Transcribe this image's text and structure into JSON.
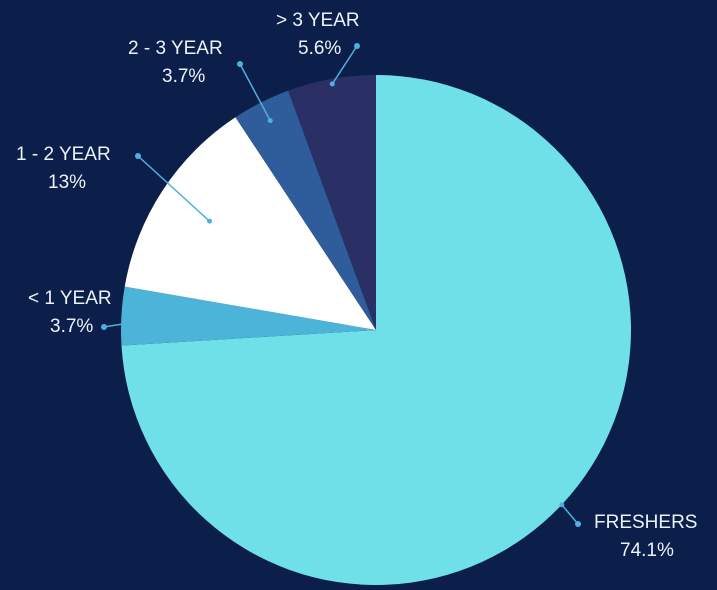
{
  "chart_data": {
    "type": "pie",
    "start_angle_deg": 0,
    "direction": "clockwise",
    "background": "#0b1f4a",
    "slices": [
      {
        "label": "FRESHERS",
        "value": 74.1,
        "value_label": "74.1%",
        "color": "#6fe0e8"
      },
      {
        "label": "< 1 YEAR",
        "value": 3.7,
        "value_label": "3.7%",
        "color": "#4bb4d8"
      },
      {
        "label": "1 - 2 YEAR",
        "value": 13,
        "value_label": "13%",
        "color": "#ffffff"
      },
      {
        "label": "2 - 3 YEAR",
        "value": 3.7,
        "value_label": "3.7%",
        "color": "#2f5c9a"
      },
      {
        "label": "> 3 YEAR",
        "value": 5.6,
        "value_label": "5.6%",
        "color": "#2a2f66"
      }
    ],
    "leader_color": "#4fb0de"
  }
}
